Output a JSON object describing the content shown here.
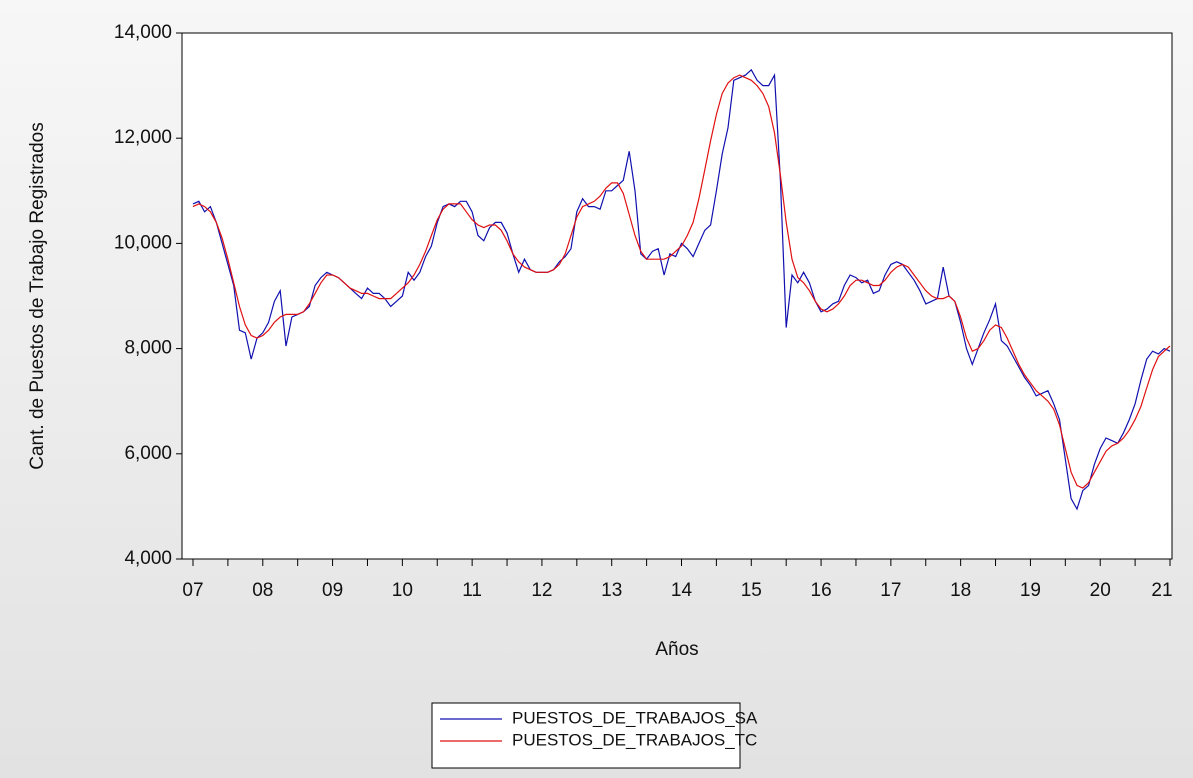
{
  "chart_data": {
    "type": "line",
    "ylabel": "Cant. de Puestos de Trabajo Registrados",
    "xlabel": "Años",
    "categories": [
      "07",
      null,
      null,
      null,
      null,
      null,
      null,
      null,
      null,
      null,
      null,
      null,
      "08",
      null,
      null,
      null,
      null,
      null,
      null,
      null,
      null,
      null,
      null,
      null,
      "09",
      null,
      null,
      null,
      null,
      null,
      null,
      null,
      null,
      null,
      null,
      null,
      "10",
      null,
      null,
      null,
      null,
      null,
      null,
      null,
      null,
      null,
      null,
      null,
      "11",
      null,
      null,
      null,
      null,
      null,
      null,
      null,
      null,
      null,
      null,
      null,
      "12",
      null,
      null,
      null,
      null,
      null,
      null,
      null,
      null,
      null,
      null,
      null,
      "13",
      null,
      null,
      null,
      null,
      null,
      null,
      null,
      null,
      null,
      null,
      null,
      "14",
      null,
      null,
      null,
      null,
      null,
      null,
      null,
      null,
      null,
      null,
      null,
      "15",
      null,
      null,
      null,
      null,
      null,
      null,
      null,
      null,
      null,
      null,
      null,
      "16",
      null,
      null,
      null,
      null,
      null,
      null,
      null,
      null,
      null,
      null,
      null,
      "17",
      null,
      null,
      null,
      null,
      null,
      null,
      null,
      null,
      null,
      null,
      null,
      "18",
      null,
      null,
      null,
      null,
      null,
      null,
      null,
      null,
      null,
      null,
      null,
      "19",
      null,
      null,
      null,
      null,
      null,
      null,
      null,
      null,
      null,
      null,
      null,
      "20",
      null,
      null,
      null,
      null,
      null,
      null,
      null,
      null,
      null,
      null,
      null,
      "21"
    ],
    "series": [
      {
        "name": "PUESTOS_DE_TRABAJOS_SA",
        "color": "#1010b0",
        "values": [
          10750,
          10800,
          10600,
          10700,
          10400,
          10000,
          9600,
          9200,
          8350,
          8300,
          7800,
          8200,
          8300,
          8500,
          8900,
          9100,
          8050,
          8600,
          8650,
          8700,
          8800,
          9200,
          9350,
          9450,
          9400,
          9350,
          9250,
          9150,
          9050,
          8950,
          9150,
          9050,
          9050,
          8950,
          8800,
          8900,
          9000,
          9450,
          9300,
          9450,
          9750,
          9950,
          10400,
          10700,
          10750,
          10700,
          10800,
          10800,
          10600,
          10150,
          10050,
          10300,
          10400,
          10400,
          10200,
          9800,
          9450,
          9700,
          9500,
          9450,
          9450,
          9450,
          9500,
          9650,
          9750,
          9900,
          10600,
          10850,
          10700,
          10700,
          10650,
          11000,
          11000,
          11100,
          11200,
          11750,
          11000,
          9800,
          9700,
          9850,
          9900,
          9400,
          9800,
          9750,
          10000,
          9900,
          9750,
          10000,
          10250,
          10350,
          11000,
          11700,
          12200,
          13100,
          13150,
          13200,
          13300,
          13100,
          13000,
          13000,
          13200,
          11200,
          8400,
          9400,
          9250,
          9450,
          9250,
          8900,
          8700,
          8750,
          8850,
          8900,
          9200,
          9400,
          9350,
          9250,
          9300,
          9050,
          9100,
          9400,
          9600,
          9650,
          9600,
          9450,
          9300,
          9100,
          8850,
          8900,
          8950,
          9550,
          9000,
          8900,
          8500,
          8000,
          7700,
          8000,
          8300,
          8550,
          8850,
          8150,
          8050,
          7850,
          7650,
          7450,
          7300,
          7100,
          7150,
          7200,
          6950,
          6650,
          5900,
          5150,
          4950,
          5300,
          5400,
          5800,
          6100,
          6300,
          6250,
          6200,
          6400,
          6650,
          6950,
          7400,
          7800,
          7950,
          7900,
          8000,
          7950
        ]
      },
      {
        "name": "PUESTOS_DE_TRABAJOS_TC",
        "color": "#e01010",
        "values": [
          10700,
          10750,
          10700,
          10600,
          10400,
          10100,
          9700,
          9250,
          8800,
          8450,
          8250,
          8200,
          8250,
          8350,
          8500,
          8600,
          8650,
          8650,
          8650,
          8700,
          8850,
          9050,
          9250,
          9400,
          9400,
          9350,
          9250,
          9150,
          9100,
          9050,
          9050,
          9000,
          8950,
          8950,
          8950,
          9050,
          9150,
          9250,
          9400,
          9600,
          9850,
          10150,
          10450,
          10650,
          10750,
          10750,
          10750,
          10600,
          10450,
          10350,
          10300,
          10350,
          10350,
          10250,
          10050,
          9800,
          9650,
          9550,
          9500,
          9450,
          9450,
          9450,
          9500,
          9600,
          9800,
          10150,
          10500,
          10700,
          10750,
          10800,
          10900,
          11050,
          11150,
          11150,
          10950,
          10550,
          10150,
          9850,
          9700,
          9700,
          9700,
          9700,
          9750,
          9850,
          9950,
          10150,
          10400,
          10850,
          11400,
          11950,
          12450,
          12850,
          13050,
          13150,
          13200,
          13150,
          13100,
          13000,
          12850,
          12600,
          12100,
          11300,
          10400,
          9700,
          9350,
          9250,
          9100,
          8900,
          8750,
          8700,
          8750,
          8850,
          9000,
          9200,
          9300,
          9300,
          9250,
          9200,
          9200,
          9300,
          9450,
          9550,
          9600,
          9550,
          9400,
          9250,
          9100,
          9000,
          8950,
          8950,
          9000,
          8900,
          8600,
          8200,
          7950,
          8000,
          8150,
          8350,
          8450,
          8400,
          8200,
          7950,
          7700,
          7500,
          7350,
          7200,
          7100,
          7000,
          6850,
          6550,
          6100,
          5650,
          5400,
          5350,
          5450,
          5650,
          5850,
          6050,
          6150,
          6200,
          6300,
          6450,
          6650,
          6900,
          7250,
          7600,
          7850,
          7950,
          8050
        ]
      }
    ],
    "ylim": [
      4000,
      14000
    ],
    "yticks": [
      {
        "value": 4000,
        "label": "4,000"
      },
      {
        "value": 6000,
        "label": "6,000"
      },
      {
        "value": 8000,
        "label": "8,000"
      },
      {
        "value": 10000,
        "label": "10,000"
      },
      {
        "value": 12000,
        "label": "12,000"
      },
      {
        "value": 14000,
        "label": "14,000"
      }
    ],
    "legend": "bottom"
  }
}
